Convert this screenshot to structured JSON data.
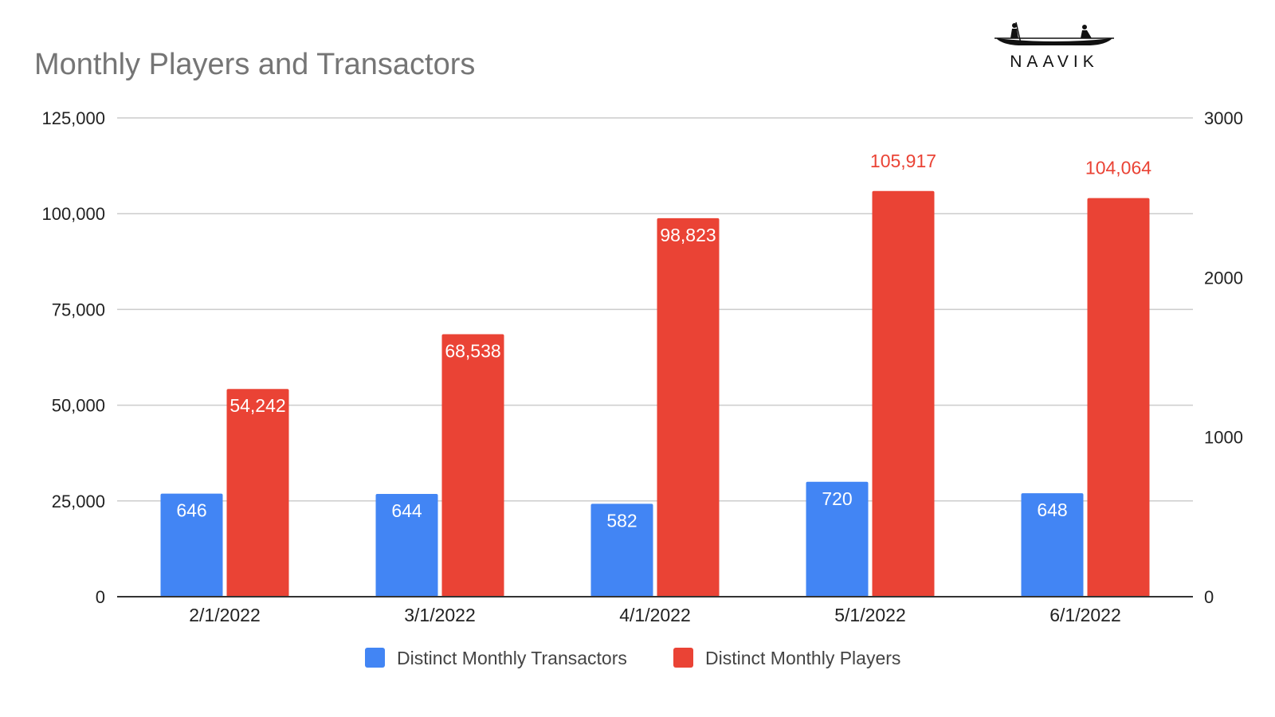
{
  "chart_data": {
    "type": "bar",
    "title": "Monthly Players and Transactors",
    "categories": [
      "2/1/2022",
      "3/1/2022",
      "4/1/2022",
      "5/1/2022",
      "6/1/2022"
    ],
    "series": [
      {
        "name": "Distinct Monthly Transactors",
        "axis": "right",
        "color": "#4285f4",
        "values": [
          646,
          644,
          582,
          720,
          648
        ],
        "labels": [
          "646",
          "644",
          "582",
          "720",
          "648"
        ]
      },
      {
        "name": "Distinct Monthly Players",
        "axis": "left",
        "color": "#ea4335",
        "values": [
          54242,
          68538,
          98823,
          105917,
          104064
        ],
        "labels": [
          "54,242",
          "68,538",
          "98,823",
          "105,917",
          "104,064"
        ]
      }
    ],
    "y_left": {
      "ylim": [
        0,
        125000
      ],
      "ticks": [
        0,
        25000,
        50000,
        75000,
        100000,
        125000
      ],
      "tick_labels": [
        "0",
        "25,000",
        "50,000",
        "75,000",
        "100,000",
        "125,000"
      ]
    },
    "y_right": {
      "ylim": [
        0,
        3000
      ],
      "ticks": [
        0,
        1000,
        2000,
        3000
      ],
      "tick_labels": [
        "0",
        "1000",
        "2000",
        "3000"
      ]
    },
    "xlabel": "",
    "ylabel": "",
    "grid": true,
    "legend_position": "bottom"
  },
  "logo": {
    "text": "NAAVIK"
  },
  "colors": {
    "title": "#757575",
    "axis_text": "#222222",
    "grid": "#cccccc"
  }
}
